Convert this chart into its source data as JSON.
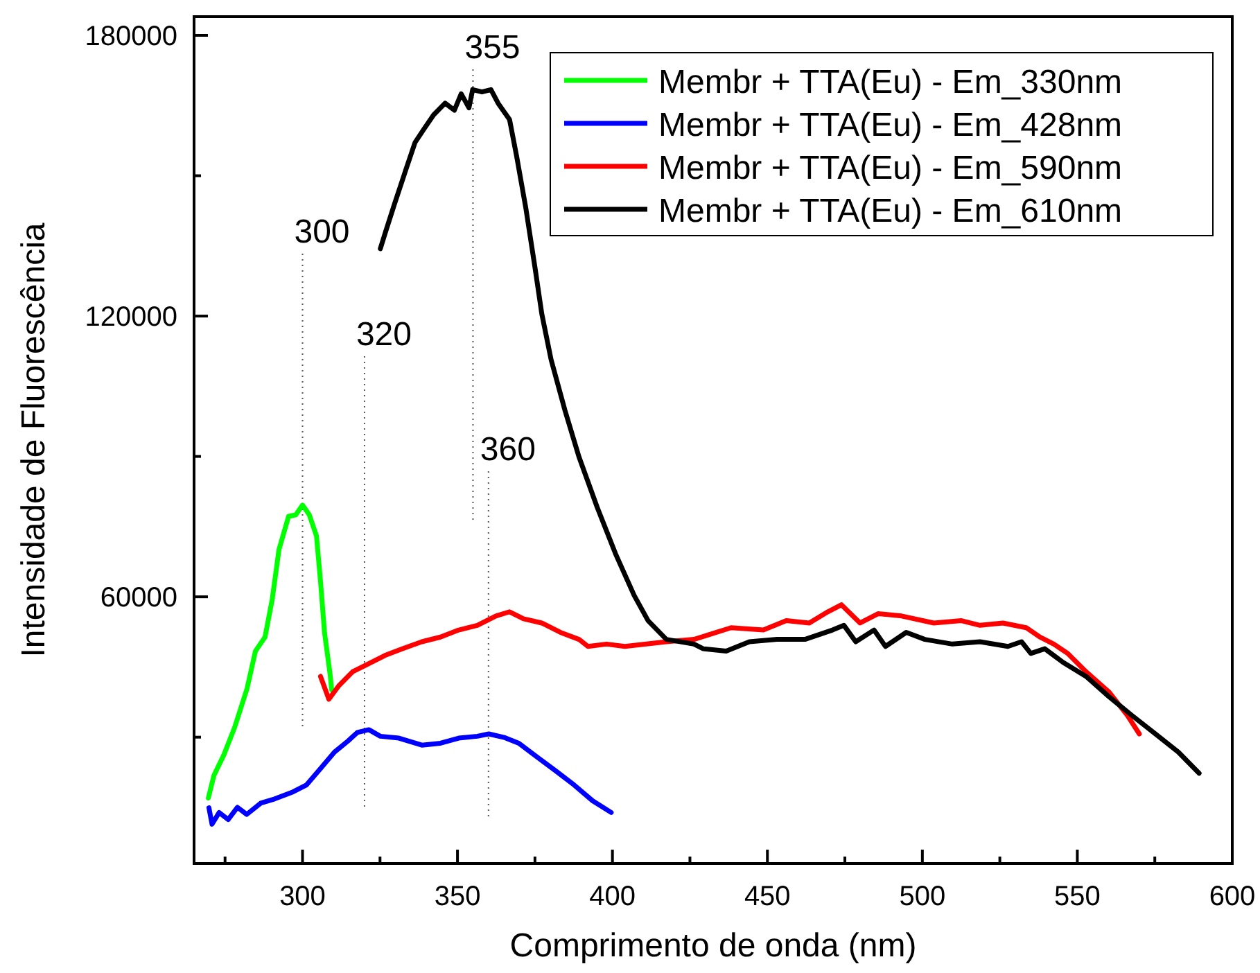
{
  "chart_data": {
    "type": "line",
    "xlabel": "Comprimento de onda (nm)",
    "ylabel": "Intensidade de Fluorescência",
    "xlim": [
      265,
      600
    ],
    "xticks": [
      {
        "value": 275,
        "label": null
      },
      300,
      {
        "value": 325,
        "label": null
      },
      350,
      {
        "value": 375,
        "label": null
      },
      400,
      {
        "value": 425,
        "label": null
      },
      450,
      {
        "value": 475,
        "label": null
      },
      500,
      {
        "value": 525,
        "label": null
      },
      550,
      {
        "value": 575,
        "label": null
      },
      600
    ],
    "ylim": [
      3000,
      184000
    ],
    "yticks": [
      {
        "value": 30000,
        "label": null
      },
      60000,
      {
        "value": 90000,
        "label": null
      },
      120000,
      {
        "value": 150000,
        "label": null
      },
      180000
    ],
    "grid": false,
    "legend": "top right",
    "marker": "none",
    "line_style": "solid",
    "ref_lines": [
      {
        "axis": "x",
        "value": 300,
        "label": "300",
        "color": "#555555",
        "line_style": "dotted"
      },
      {
        "axis": "x",
        "value": 320,
        "label": "320",
        "color": "#555555",
        "line_style": "dotted"
      },
      {
        "axis": "x",
        "value": 355,
        "label": "355",
        "color": "#555555",
        "line_style": "dotted"
      },
      {
        "axis": "x",
        "value": 360,
        "label": "360",
        "color": "#555555",
        "line_style": "dotted"
      }
    ],
    "series": [
      {
        "name": "Membr + TTA(Eu) - Em_330nm",
        "color": "#00ff00",
        "x": [
          269.6,
          271.4,
          274.6,
          278.1,
          282.1,
          284.8,
          287.9,
          290.2,
          292.4,
          295.5,
          297.8,
          300,
          302.2,
          304.5,
          305.8,
          307.1,
          308.9,
          309.4
        ],
        "values": [
          17000,
          21800,
          26200,
          32100,
          40400,
          48400,
          51400,
          59400,
          70100,
          77200,
          77500,
          79600,
          77500,
          73000,
          63300,
          52300,
          43400,
          40100
        ]
      },
      {
        "name": "Membr + TTA(Eu) - Em_428nm",
        "color": "#0000ff",
        "x": [
          269.8,
          270.8,
          273.1,
          276,
          279,
          282,
          286.5,
          291,
          296.9,
          301.3,
          305.8,
          310.3,
          314.7,
          317.7,
          321.4,
          325.1,
          331.1,
          338.5,
          344.5,
          350.4,
          356.4,
          360.1,
          365.3,
          369.8,
          375.8,
          381.7,
          387.6,
          393.6,
          399.6
        ],
        "values": [
          14900,
          11400,
          13900,
          12400,
          15000,
          13500,
          15900,
          16800,
          18300,
          19800,
          23300,
          26800,
          29200,
          31000,
          31600,
          30200,
          29800,
          28300,
          28700,
          29800,
          30200,
          30700,
          29900,
          28700,
          25700,
          22800,
          19800,
          16400,
          13900
        ]
      },
      {
        "name": "Membr + TTA(Eu) - Em_590nm",
        "color": "#ff0000",
        "x": [
          305.8,
          308.5,
          311.7,
          316.2,
          320.7,
          326.7,
          332.6,
          338.5,
          344.5,
          350.4,
          356.4,
          362.4,
          366.8,
          371.3,
          377.2,
          383.2,
          389.2,
          392.1,
          398.1,
          404,
          417.4,
          426.3,
          438.3,
          448.7,
          456.1,
          463.5,
          469.5,
          473.9,
          479.9,
          485.8,
          493.3,
          503.7,
          512.6,
          518.6,
          526,
          533.5,
          537.9,
          542.4,
          546.9,
          552.8,
          560.3,
          566.2,
          570
        ],
        "values": [
          43000,
          38100,
          41000,
          44000,
          45500,
          47500,
          49000,
          50400,
          51400,
          52900,
          53900,
          55900,
          56800,
          55300,
          54400,
          52400,
          50900,
          49400,
          49900,
          49400,
          50400,
          50900,
          53400,
          52900,
          54900,
          54400,
          56800,
          58300,
          54400,
          56400,
          55900,
          54400,
          54900,
          53900,
          54400,
          53400,
          51400,
          49900,
          47900,
          44000,
          39600,
          34600,
          30700
        ]
      },
      {
        "name": "Membr + TTA(Eu) - Em_610nm",
        "color": "#000000",
        "x": [
          325.1,
          326.7,
          329.6,
          333.3,
          336.3,
          339.3,
          342.3,
          346,
          349,
          351.2,
          353.7,
          354.9,
          357.9,
          360.8,
          363.1,
          366.8,
          369.1,
          372,
          375,
          377.2,
          380.2,
          384.7,
          389.2,
          395.1,
          401,
          407,
          411.5,
          417.4,
          426.3,
          429.3,
          436.7,
          444.2,
          453.1,
          462.1,
          471,
          474.7,
          478.5,
          484.4,
          488.1,
          494.8,
          500.8,
          509.7,
          518.6,
          527.6,
          532,
          535,
          539.5,
          545.4,
          552.8,
          560.3,
          567.7,
          575.2,
          582.6,
          589.3
        ],
        "values": [
          134400,
          137800,
          143800,
          151200,
          157100,
          160100,
          163000,
          165500,
          164000,
          167500,
          164500,
          168400,
          167900,
          168400,
          165500,
          162000,
          154100,
          143300,
          130400,
          120500,
          110700,
          99800,
          89900,
          79100,
          69200,
          60300,
          54900,
          50900,
          49900,
          48900,
          48400,
          50400,
          50900,
          50900,
          52900,
          53900,
          50400,
          52900,
          49400,
          52400,
          50900,
          49900,
          50400,
          49400,
          50400,
          47900,
          48900,
          46000,
          43000,
          38600,
          34600,
          30700,
          26800,
          22300
        ]
      }
    ]
  }
}
